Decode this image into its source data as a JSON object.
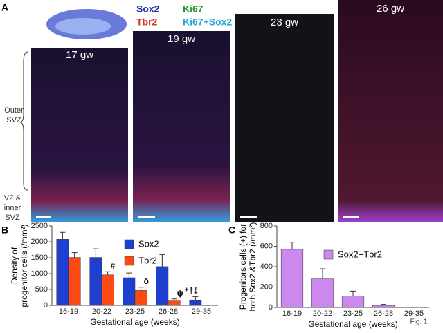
{
  "figure": {
    "panel_label": "A",
    "stains": [
      {
        "text": "Sox2",
        "color": "#2433a8"
      },
      {
        "text": "Ki67",
        "color": "#2a9a2a"
      },
      {
        "text": "Tbr2",
        "color": "#e0301a"
      },
      {
        "text": "Ki67+Sox2",
        "color": "#28a8d8"
      }
    ],
    "images": [
      "17 gw",
      "19 gw",
      "23 gw",
      "26 gw"
    ],
    "outer_svz": [
      "Outer",
      "SVZ"
    ],
    "inner_svz": [
      "VZ &",
      "inner",
      "SVZ"
    ],
    "fig_label": "Fig. 1"
  },
  "chart_data": [
    {
      "type": "bar",
      "panel_label": "B",
      "ylabel": [
        "Density of",
        "progenitor cells (/mm²)"
      ],
      "xlabel": "Gestational age (weeks)",
      "categories": [
        "16-19",
        "20-22",
        "23-25",
        "26-28",
        "29-35"
      ],
      "series": [
        {
          "name": "Sox2",
          "color": "#1f3fd0",
          "values": [
            2080,
            1510,
            870,
            1220,
            170
          ],
          "errors": [
            220,
            270,
            150,
            380,
            100
          ]
        },
        {
          "name": "Tbr2",
          "color": "#ff4a14",
          "values": [
            1510,
            960,
            470,
            160,
            0
          ],
          "errors": [
            150,
            100,
            100,
            40,
            0
          ]
        }
      ],
      "annotations": [
        {
          "text": "#",
          "category": 1,
          "series": 1
        },
        {
          "text": "δ",
          "category": 2,
          "series": 1
        },
        {
          "text": "ψ",
          "category": 3,
          "series": 1
        },
        {
          "text": "⁺†‡",
          "category": 4,
          "series": 0
        }
      ],
      "ylim": [
        0,
        2500
      ],
      "yticks": [
        0,
        500,
        1000,
        1500,
        2000,
        2500
      ]
    },
    {
      "type": "bar",
      "panel_label": "C",
      "ylabel": [
        "Progenitors cells (+) for",
        "both Sox2 &Tbr2 (/mm²)"
      ],
      "xlabel": "Gestational age (weeks)",
      "categories": [
        "16-19",
        "20-22",
        "23-25",
        "26-28",
        "29-35"
      ],
      "series": [
        {
          "name": "Sox2+Tbr2",
          "color": "#cc88ee",
          "values": [
            570,
            280,
            110,
            20,
            0
          ],
          "errors": [
            70,
            100,
            50,
            10,
            0
          ]
        }
      ],
      "annotations": [],
      "ylim": [
        0,
        800
      ],
      "yticks": [
        0,
        200,
        400,
        600,
        800
      ]
    }
  ]
}
